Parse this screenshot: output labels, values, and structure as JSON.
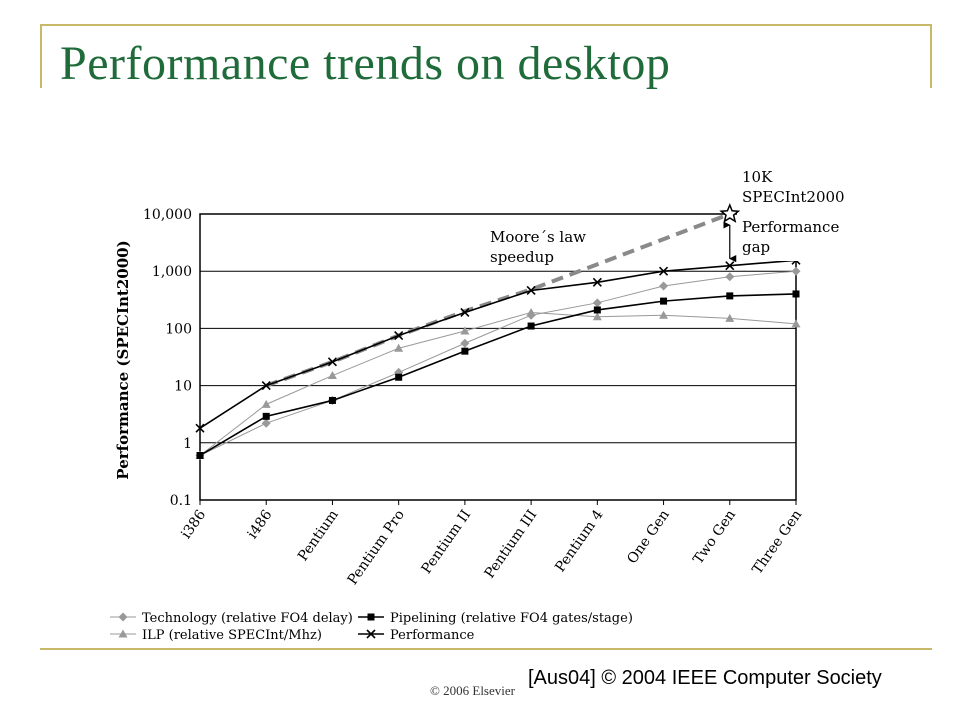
{
  "slide": {
    "title": "Performance trends on desktop",
    "copyright": "© 2006 Elsevier",
    "credit": "[Aus04] © 2004 IEEE Computer Society"
  },
  "colors": {
    "title": "#1f6b3a",
    "frame": "#c8b86a",
    "moore": "#8a8a8a",
    "technology": "#999999",
    "ilp": "#999999",
    "pipelining": "#000000",
    "performance": "#000000"
  },
  "chart_data": {
    "type": "line",
    "title": "",
    "ylabel": "Performance (SPECInt2000)",
    "xlabel": "",
    "yscale": "log",
    "ylim": [
      0.1,
      10000
    ],
    "yticks": [
      "10,000",
      "1,000",
      "100",
      "10",
      "1",
      "0.1"
    ],
    "ytick_values": [
      10000,
      1000,
      100,
      10,
      1,
      0.1
    ],
    "categories": [
      "i386",
      "i486",
      "Pentium",
      "Pentium Pro",
      "Pentium II",
      "Pentium III",
      "Pentium 4",
      "One Gen",
      "Two Gen",
      "Three Gen"
    ],
    "grid": true,
    "legend_position": "bottom",
    "series": [
      {
        "name": "Technology (relative FO4 delay)",
        "marker": "diamond",
        "values": [
          0.6,
          2.2,
          5.5,
          17,
          55,
          170,
          280,
          550,
          800,
          1000
        ]
      },
      {
        "name": "Pipelining (relative FO4 gates/stage)",
        "marker": "square",
        "values": [
          0.6,
          2.9,
          5.5,
          14,
          40,
          110,
          210,
          300,
          370,
          400
        ]
      },
      {
        "name": "ILP (relative SPECInt/Mhz)",
        "marker": "triangle",
        "values": [
          0.6,
          4.7,
          15,
          45,
          90,
          190,
          160,
          170,
          150,
          120
        ]
      },
      {
        "name": "Performance",
        "marker": "x",
        "values": [
          1.8,
          10,
          26,
          75,
          190,
          460,
          640,
          1000,
          1250,
          1550
        ]
      }
    ],
    "trend": {
      "values": [
        null,
        10,
        26,
        75,
        200,
        480,
        null,
        null,
        10000,
        null
      ]
    },
    "annotations": {
      "moore_line1": "Moore´s law",
      "moore_line2": "speedup",
      "target_line1": "10K",
      "target_line2": "SPECInt2000",
      "gap_line1": "Performance",
      "gap_line2": "gap"
    }
  }
}
